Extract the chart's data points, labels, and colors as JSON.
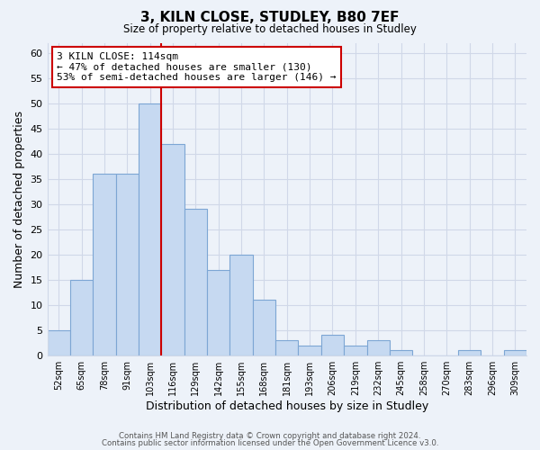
{
  "title": "3, KILN CLOSE, STUDLEY, B80 7EF",
  "subtitle": "Size of property relative to detached houses in Studley",
  "xlabel": "Distribution of detached houses by size in Studley",
  "ylabel": "Number of detached properties",
  "footer_line1": "Contains HM Land Registry data © Crown copyright and database right 2024.",
  "footer_line2": "Contains public sector information licensed under the Open Government Licence v3.0.",
  "bin_labels": [
    "52sqm",
    "65sqm",
    "78sqm",
    "91sqm",
    "103sqm",
    "116sqm",
    "129sqm",
    "142sqm",
    "155sqm",
    "168sqm",
    "181sqm",
    "193sqm",
    "206sqm",
    "219sqm",
    "232sqm",
    "245sqm",
    "258sqm",
    "270sqm",
    "283sqm",
    "296sqm",
    "309sqm"
  ],
  "bar_heights": [
    5,
    15,
    36,
    36,
    50,
    42,
    29,
    17,
    20,
    11,
    3,
    2,
    4,
    2,
    3,
    1,
    0,
    0,
    1,
    0,
    1
  ],
  "bar_color": "#c6d9f1",
  "bar_edge_color": "#7da6d4",
  "property_line_x": 4.5,
  "property_line_color": "#cc0000",
  "annotation_line1": "3 KILN CLOSE: 114sqm",
  "annotation_line2": "← 47% of detached houses are smaller (130)",
  "annotation_line3": "53% of semi-detached houses are larger (146) →",
  "annotation_box_color": "#ffffff",
  "annotation_box_edge_color": "#cc0000",
  "ylim": [
    0,
    62
  ],
  "yticks": [
    0,
    5,
    10,
    15,
    20,
    25,
    30,
    35,
    40,
    45,
    50,
    55,
    60
  ],
  "grid_color": "#d0d8e8",
  "background_color": "#edf2f9",
  "plot_bg_color": "#edf2f9"
}
